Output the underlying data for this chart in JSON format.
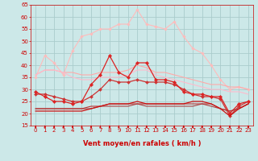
{
  "xlabel": "Vent moyen/en rafales ( km/h )",
  "bg_color": "#cce8e8",
  "grid_color": "#aacccc",
  "xlim": [
    -0.5,
    23.5
  ],
  "ylim": [
    15,
    65
  ],
  "yticks": [
    15,
    20,
    25,
    30,
    35,
    40,
    45,
    50,
    55,
    60,
    65
  ],
  "xticks": [
    0,
    1,
    2,
    3,
    4,
    5,
    6,
    7,
    8,
    9,
    10,
    11,
    12,
    13,
    14,
    15,
    16,
    17,
    18,
    19,
    20,
    21,
    22,
    23
  ],
  "x": [
    0,
    1,
    2,
    3,
    4,
    5,
    6,
    7,
    8,
    9,
    10,
    11,
    12,
    13,
    14,
    15,
    16,
    17,
    18,
    19,
    20,
    21,
    22,
    23
  ],
  "series": [
    {
      "y": [
        35,
        44,
        41,
        36,
        46,
        52,
        53,
        55,
        55,
        57,
        57,
        63,
        57,
        56,
        55,
        58,
        52,
        47,
        45,
        40,
        34,
        30,
        31,
        30
      ],
      "color": "#ffbbbb",
      "linewidth": 0.8,
      "marker": "D",
      "markersize": 1.8,
      "zorder": 2
    },
    {
      "y": [
        36,
        38,
        38,
        37,
        37,
        36,
        36,
        37,
        37,
        37,
        38,
        40,
        39,
        37,
        37,
        36,
        35,
        34,
        33,
        32,
        32,
        31,
        31,
        30
      ],
      "color": "#ffaaaa",
      "linewidth": 0.8,
      "marker": null,
      "markersize": 0,
      "zorder": 2
    },
    {
      "y": [
        36,
        38,
        38,
        37,
        35,
        34,
        34,
        35,
        35,
        35,
        36,
        38,
        38,
        36,
        35,
        34,
        33,
        32,
        31,
        30,
        30,
        29,
        29,
        28
      ],
      "color": "#ffbbcc",
      "linewidth": 0.8,
      "marker": null,
      "markersize": 0,
      "zorder": 2
    },
    {
      "y": [
        29,
        27,
        25,
        25,
        24,
        25,
        32,
        36,
        44,
        37,
        35,
        41,
        41,
        34,
        34,
        33,
        29,
        28,
        28,
        27,
        27,
        20,
        24,
        25
      ],
      "color": "#dd2222",
      "linewidth": 0.9,
      "marker": "D",
      "markersize": 2.2,
      "zorder": 4
    },
    {
      "y": [
        28,
        28,
        27,
        26,
        25,
        25,
        27,
        30,
        34,
        33,
        33,
        34,
        33,
        33,
        33,
        32,
        30,
        28,
        27,
        27,
        26,
        19,
        23,
        25
      ],
      "color": "#cc3333",
      "linewidth": 0.9,
      "marker": "D",
      "markersize": 2.0,
      "zorder": 3
    },
    {
      "y": [
        21,
        21,
        21,
        21,
        21,
        21,
        22,
        23,
        24,
        24,
        24,
        25,
        24,
        24,
        24,
        24,
        24,
        25,
        25,
        24,
        22,
        19,
        22,
        24
      ],
      "color": "#cc1111",
      "linewidth": 0.9,
      "marker": null,
      "markersize": 0,
      "zorder": 5
    },
    {
      "y": [
        22,
        22,
        22,
        22,
        22,
        22,
        23,
        23,
        24,
        24,
        24,
        24,
        24,
        24,
        24,
        24,
        24,
        24,
        24,
        24,
        22,
        21,
        22,
        24
      ],
      "color": "#bb3333",
      "linewidth": 0.8,
      "marker": null,
      "markersize": 0,
      "zorder": 4
    },
    {
      "y": [
        22,
        22,
        22,
        22,
        22,
        22,
        22,
        23,
        23,
        23,
        23,
        24,
        23,
        23,
        23,
        23,
        23,
        23,
        24,
        23,
        22,
        21,
        22,
        24
      ],
      "color": "#aa4444",
      "linewidth": 0.8,
      "marker": null,
      "markersize": 0,
      "zorder": 3
    }
  ],
  "arrow_color": "#cc0000",
  "xlabel_color": "#cc0000",
  "xlabel_fontsize": 6.0,
  "tick_color": "#cc0000",
  "tick_fontsize": 5.0
}
